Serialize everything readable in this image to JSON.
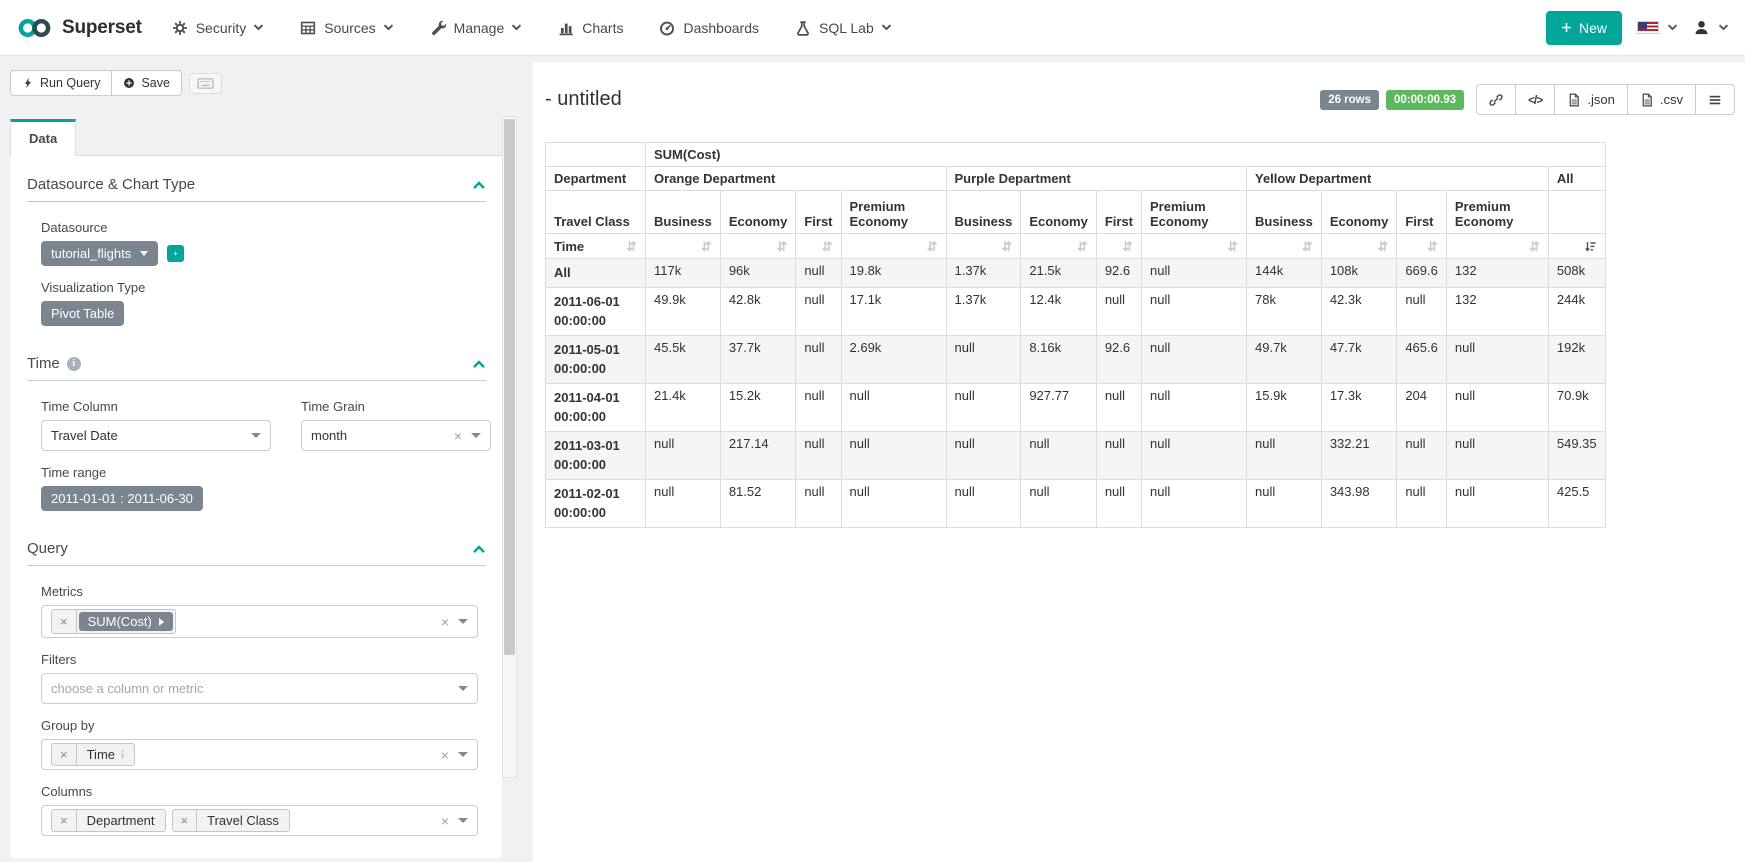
{
  "navbar": {
    "brand": "Superset",
    "items": [
      {
        "label": "Security",
        "icon": "gears",
        "caret": true
      },
      {
        "label": "Sources",
        "icon": "table",
        "caret": true
      },
      {
        "label": "Manage",
        "icon": "wrench",
        "caret": true
      },
      {
        "label": "Charts",
        "icon": "chart",
        "caret": false
      },
      {
        "label": "Dashboards",
        "icon": "dashboard",
        "caret": false
      },
      {
        "label": "SQL Lab",
        "icon": "flask",
        "caret": true
      }
    ],
    "new_label": "New"
  },
  "toolbar": {
    "run_query_label": "Run Query",
    "save_label": "Save"
  },
  "tab_label": "Data",
  "controls": {
    "datasource_section_title": "Datasource & Chart Type",
    "datasource_label": "Datasource",
    "datasource_value": "tutorial_flights",
    "viz_type_label": "Visualization Type",
    "viz_type_value": "Pivot Table",
    "time_section_title": "Time",
    "time_column_label": "Time Column",
    "time_column_value": "Travel Date",
    "time_grain_label": "Time Grain",
    "time_grain_value": "month",
    "time_range_label": "Time range",
    "time_range_value": "2011-01-01 : 2011-06-30",
    "query_section_title": "Query",
    "metrics_label": "Metrics",
    "metric_token": "SUM(Cost)",
    "filters_label": "Filters",
    "filters_placeholder": "choose a column or metric",
    "groupby_label": "Group by",
    "groupby_tokens": [
      {
        "label": "Time",
        "info": true
      }
    ],
    "columns_label": "Columns",
    "columns_tokens": [
      {
        "label": "Department"
      },
      {
        "label": "Travel Class"
      }
    ]
  },
  "results": {
    "title": "- untitled",
    "rows_badge": "26 rows",
    "duration_badge": "00:00:00.93",
    "json_label": ".json",
    "csv_label": ".csv"
  },
  "pivot_table": {
    "metric_header": "SUM(Cost)",
    "department_label": "Department",
    "departments": [
      "Orange Department",
      "Purple Department",
      "Yellow Department"
    ],
    "all_label": "All",
    "travel_class_label": "Travel Class",
    "travel_classes": [
      "Business",
      "Economy",
      "First",
      "Premium Economy"
    ],
    "time_label": "Time",
    "rows": [
      {
        "time": "All",
        "values": [
          "117k",
          "96k",
          "null",
          "19.8k",
          "1.37k",
          "21.5k",
          "92.6",
          "null",
          "144k",
          "108k",
          "669.6",
          "132",
          "508k"
        ]
      },
      {
        "time": "2011-06-01 00:00:00",
        "values": [
          "49.9k",
          "42.8k",
          "null",
          "17.1k",
          "1.37k",
          "12.4k",
          "null",
          "null",
          "78k",
          "42.3k",
          "null",
          "132",
          "244k"
        ]
      },
      {
        "time": "2011-05-01 00:00:00",
        "values": [
          "45.5k",
          "37.7k",
          "null",
          "2.69k",
          "null",
          "8.16k",
          "92.6",
          "null",
          "49.7k",
          "47.7k",
          "465.6",
          "null",
          "192k"
        ]
      },
      {
        "time": "2011-04-01 00:00:00",
        "values": [
          "21.4k",
          "15.2k",
          "null",
          "null",
          "null",
          "927.77",
          "null",
          "null",
          "15.9k",
          "17.3k",
          "204",
          "null",
          "70.9k"
        ]
      },
      {
        "time": "2011-03-01 00:00:00",
        "values": [
          "null",
          "217.14",
          "null",
          "null",
          "null",
          "null",
          "null",
          "null",
          "null",
          "332.21",
          "null",
          "null",
          "549.35"
        ]
      },
      {
        "time": "2011-02-01 00:00:00",
        "values": [
          "null",
          "81.52",
          "null",
          "null",
          "null",
          "null",
          "null",
          "null",
          "null",
          "343.98",
          "null",
          "null",
          "425.5"
        ]
      }
    ]
  },
  "colors": {
    "accent": "#00A699",
    "badge_gray": "#7A8590",
    "badge_green": "#5CB85C"
  }
}
